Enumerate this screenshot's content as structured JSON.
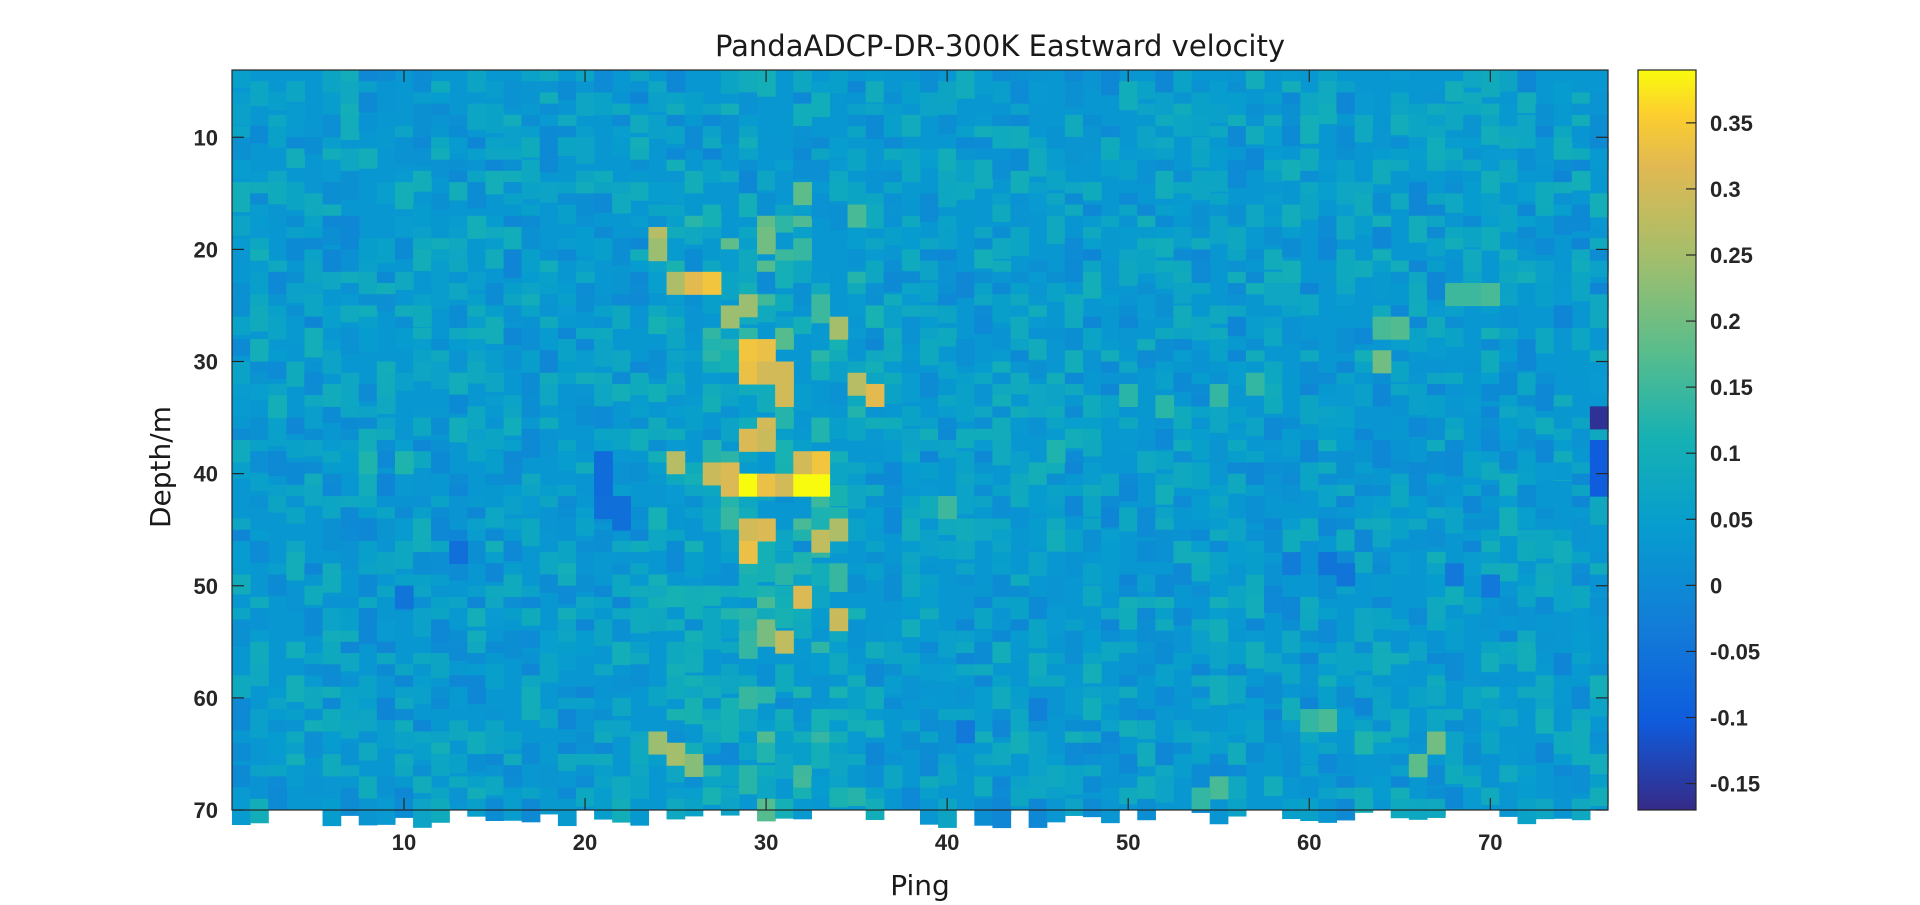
{
  "chart_data": {
    "type": "heatmap",
    "title": "PandaADCP-DR-300K Eastward velocity",
    "xlabel": "Ping",
    "ylabel": "Depth/m",
    "x_range": [
      1,
      76
    ],
    "y_range": [
      4,
      70
    ],
    "y_reversed": true,
    "x_ticks": [
      10,
      20,
      30,
      40,
      50,
      60,
      70
    ],
    "y_ticks": [
      10,
      20,
      30,
      40,
      50,
      60,
      70
    ],
    "colorbar": {
      "colormap": "parula",
      "range": [
        -0.17,
        0.39
      ],
      "ticks": [
        -0.15,
        -0.1,
        -0.05,
        0,
        0.05,
        0.1,
        0.15,
        0.2,
        0.25,
        0.3,
        0.35
      ],
      "tick_labels": [
        "-0.15",
        "-0.1",
        "-0.05",
        "0",
        "0.05",
        "0.1",
        "0.15",
        "0.2",
        "0.25",
        "0.3",
        "0.35"
      ]
    },
    "grid": false,
    "background_value": 0.03,
    "cells": [
      [
        21,
        39,
        -0.07
      ],
      [
        21,
        40,
        -0.07
      ],
      [
        21,
        41,
        -0.07
      ],
      [
        21,
        43,
        -0.06
      ],
      [
        22,
        43,
        -0.06
      ],
      [
        22,
        44,
        -0.06
      ],
      [
        24,
        19,
        0.27
      ],
      [
        24,
        20,
        0.24
      ],
      [
        25,
        23,
        0.26
      ],
      [
        26,
        23,
        0.32
      ],
      [
        27,
        23,
        0.34
      ],
      [
        28,
        26,
        0.24
      ],
      [
        29,
        25,
        0.24
      ],
      [
        29,
        29,
        0.34
      ],
      [
        29,
        31,
        0.33
      ],
      [
        30,
        29,
        0.33
      ],
      [
        30,
        31,
        0.3
      ],
      [
        31,
        31,
        0.3
      ],
      [
        31,
        33,
        0.3
      ],
      [
        30,
        36,
        0.3
      ],
      [
        29,
        37,
        0.31
      ],
      [
        30,
        37,
        0.29
      ],
      [
        25,
        39,
        0.27
      ],
      [
        27,
        40,
        0.29
      ],
      [
        28,
        40,
        0.31
      ],
      [
        28,
        41,
        0.31
      ],
      [
        29,
        41,
        0.39
      ],
      [
        30,
        41,
        0.33
      ],
      [
        31,
        41,
        0.3
      ],
      [
        32,
        41,
        0.39
      ],
      [
        33,
        41,
        0.39
      ],
      [
        33,
        39,
        0.34
      ],
      [
        32,
        39,
        0.3
      ],
      [
        29,
        45,
        0.3
      ],
      [
        30,
        45,
        0.31
      ],
      [
        29,
        47,
        0.33
      ],
      [
        33,
        46,
        0.28
      ],
      [
        34,
        45,
        0.26
      ],
      [
        35,
        32,
        0.27
      ],
      [
        36,
        33,
        0.32
      ],
      [
        34,
        27,
        0.25
      ],
      [
        32,
        51,
        0.31
      ],
      [
        34,
        53,
        0.29
      ],
      [
        31,
        55,
        0.28
      ],
      [
        24,
        64,
        0.24
      ],
      [
        25,
        65,
        0.25
      ],
      [
        26,
        66,
        0.22
      ],
      [
        35,
        17,
        0.16
      ],
      [
        32,
        15,
        0.18
      ],
      [
        13,
        47,
        -0.06
      ],
      [
        10,
        51,
        -0.05
      ],
      [
        76,
        35,
        -0.16
      ],
      [
        76,
        38,
        -0.1
      ],
      [
        76,
        40,
        -0.1
      ],
      [
        76,
        41,
        -0.1
      ],
      [
        59,
        48,
        -0.03
      ],
      [
        61,
        48,
        -0.05
      ],
      [
        62,
        49,
        -0.05
      ],
      [
        68,
        49,
        -0.04
      ],
      [
        70,
        50,
        -0.04
      ],
      [
        41,
        63,
        -0.04
      ],
      [
        45,
        61,
        -0.02
      ],
      [
        58,
        46,
        0.01
      ],
      [
        64,
        30,
        0.2
      ],
      [
        67,
        64,
        0.2
      ],
      [
        66,
        66,
        0.18
      ],
      [
        68,
        24,
        0.15
      ],
      [
        69,
        24,
        0.15
      ],
      [
        70,
        24,
        0.16
      ],
      [
        64,
        27,
        0.16
      ],
      [
        65,
        27,
        0.17
      ],
      [
        55,
        33,
        0.14
      ],
      [
        57,
        32,
        0.14
      ],
      [
        50,
        33,
        0.13
      ],
      [
        52,
        34,
        0.13
      ],
      [
        40,
        43,
        0.15
      ],
      [
        46,
        38,
        0.12
      ],
      [
        10,
        39,
        0.12
      ],
      [
        8,
        39,
        0.12
      ],
      [
        14,
        18,
        0.1
      ],
      [
        3,
        34,
        0.1
      ],
      [
        6,
        33,
        0.09
      ],
      [
        61,
        62,
        0.16
      ],
      [
        60,
        62,
        0.14
      ],
      [
        63,
        64,
        0.12
      ],
      [
        55,
        68,
        0.16
      ],
      [
        54,
        69,
        0.14
      ]
    ]
  }
}
